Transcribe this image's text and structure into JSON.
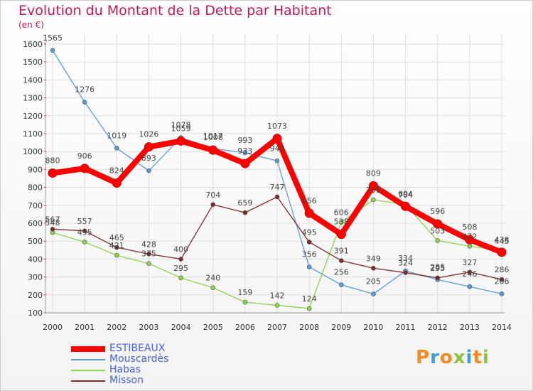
{
  "title": "Evolution du Montant de la Dette par Habitant",
  "unit": "(en €)",
  "logo": "Proxiti",
  "chart_data": {
    "type": "line",
    "x": [
      "2000",
      "2001",
      "2002",
      "2003",
      "2004",
      "2005",
      "2006",
      "2007",
      "2008",
      "2009",
      "2010",
      "2011",
      "2012",
      "2013",
      "2014"
    ],
    "ylim": [
      100,
      1600
    ],
    "yticks": [
      100,
      200,
      300,
      400,
      500,
      600,
      700,
      800,
      900,
      1000,
      1100,
      1200,
      1300,
      1400,
      1500,
      1600
    ],
    "grid": true,
    "legend": "bottom-left",
    "series": [
      {
        "name": "ESTIBEAUX",
        "color": "#ff0000",
        "values": [
          880,
          906,
          824,
          1026,
          1059,
          1008,
          933,
          1073,
          656,
          538,
          809,
          694,
          596,
          508,
          438
        ]
      },
      {
        "name": "Mouscardès",
        "color": "#5b9bd5",
        "values": [
          1565,
          1276,
          1019,
          893,
          1078,
          1017,
          993,
          948,
          356,
          256,
          205,
          334,
          285,
          246,
          206
        ]
      },
      {
        "name": "Habas",
        "color": "#8ed14a",
        "values": [
          548,
          495,
          421,
          375,
          295,
          240,
          159,
          142,
          124,
          606,
          731,
          704,
          503,
          472,
          445
        ]
      },
      {
        "name": "Misson",
        "color": "#7a2a2a",
        "values": [
          567,
          557,
          465,
          428,
          400,
          704,
          659,
          747,
          495,
          391,
          349,
          324,
          295,
          327,
          286
        ]
      }
    ]
  }
}
